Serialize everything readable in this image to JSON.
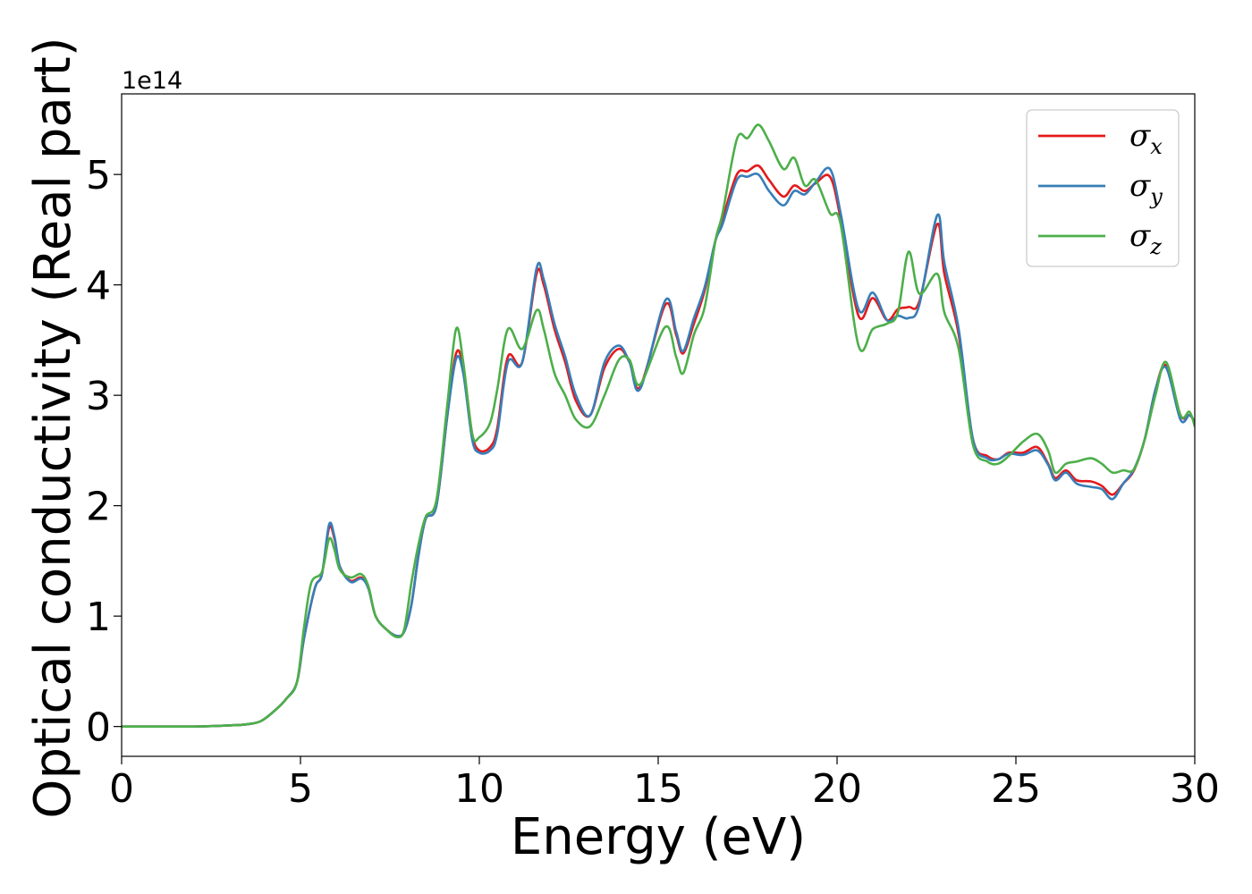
{
  "chart_data": {
    "type": "line",
    "title": "",
    "xlabel": "Energy (eV)",
    "ylabel": "Optical conductivity (Real part)",
    "y_offset_label": "1e14",
    "xlim": [
      0,
      30
    ],
    "ylim": [
      -0.27,
      5.73
    ],
    "x_ticks": [
      0,
      5,
      10,
      15,
      20,
      25,
      30
    ],
    "x_tick_labels": [
      "0",
      "5",
      "10",
      "15",
      "20",
      "25",
      "30"
    ],
    "y_ticks": [
      0,
      1,
      2,
      3,
      4,
      5
    ],
    "y_tick_labels": [
      "0",
      "1",
      "2",
      "3",
      "4",
      "5"
    ],
    "grid": false,
    "legend_position": "top-right",
    "series": [
      {
        "name": "σx",
        "name_main": "σ",
        "name_sub": "x",
        "color": "#e41a1c",
        "points": [
          [
            0,
            0
          ],
          [
            2,
            0
          ],
          [
            3,
            0.01
          ],
          [
            3.5,
            0.02
          ],
          [
            3.9,
            0.05
          ],
          [
            4.3,
            0.15
          ],
          [
            4.6,
            0.25
          ],
          [
            4.9,
            0.4
          ],
          [
            5.1,
            0.8
          ],
          [
            5.4,
            1.25
          ],
          [
            5.6,
            1.38
          ],
          [
            5.8,
            1.8
          ],
          [
            5.95,
            1.7
          ],
          [
            6.1,
            1.45
          ],
          [
            6.4,
            1.32
          ],
          [
            6.7,
            1.35
          ],
          [
            6.9,
            1.25
          ],
          [
            7.1,
            1.0
          ],
          [
            7.4,
            0.88
          ],
          [
            7.7,
            0.82
          ],
          [
            7.9,
            0.86
          ],
          [
            8.1,
            1.1
          ],
          [
            8.3,
            1.55
          ],
          [
            8.5,
            1.88
          ],
          [
            8.8,
            2.0
          ],
          [
            9.1,
            2.8
          ],
          [
            9.35,
            3.38
          ],
          [
            9.55,
            3.25
          ],
          [
            9.8,
            2.65
          ],
          [
            10,
            2.5
          ],
          [
            10.3,
            2.53
          ],
          [
            10.5,
            2.7
          ],
          [
            10.8,
            3.35
          ],
          [
            11.2,
            3.3
          ],
          [
            11.6,
            4.1
          ],
          [
            11.8,
            4.0
          ],
          [
            12.1,
            3.6
          ],
          [
            12.4,
            3.3
          ],
          [
            12.7,
            2.95
          ],
          [
            13.1,
            2.82
          ],
          [
            13.5,
            3.25
          ],
          [
            13.9,
            3.42
          ],
          [
            14.2,
            3.3
          ],
          [
            14.5,
            3.08
          ],
          [
            15.2,
            3.82
          ],
          [
            15.5,
            3.55
          ],
          [
            15.7,
            3.38
          ],
          [
            16.0,
            3.65
          ],
          [
            16.3,
            3.95
          ],
          [
            16.6,
            4.4
          ],
          [
            16.8,
            4.6
          ],
          [
            17.2,
            5.0
          ],
          [
            17.5,
            5.03
          ],
          [
            17.8,
            5.08
          ],
          [
            18.1,
            4.95
          ],
          [
            18.5,
            4.8
          ],
          [
            18.8,
            4.9
          ],
          [
            19.1,
            4.85
          ],
          [
            19.4,
            4.92
          ],
          [
            19.8,
            4.98
          ],
          [
            20.1,
            4.6
          ],
          [
            20.6,
            3.72
          ],
          [
            21.0,
            3.88
          ],
          [
            21.4,
            3.68
          ],
          [
            21.7,
            3.78
          ],
          [
            22.0,
            3.8
          ],
          [
            22.3,
            3.85
          ],
          [
            22.8,
            4.55
          ],
          [
            23.0,
            4.1
          ],
          [
            23.4,
            3.55
          ],
          [
            23.8,
            2.6
          ],
          [
            24.2,
            2.45
          ],
          [
            24.5,
            2.42
          ],
          [
            24.8,
            2.48
          ],
          [
            25.2,
            2.48
          ],
          [
            25.6,
            2.53
          ],
          [
            25.9,
            2.38
          ],
          [
            26.1,
            2.25
          ],
          [
            26.4,
            2.32
          ],
          [
            26.7,
            2.23
          ],
          [
            27.1,
            2.22
          ],
          [
            27.4,
            2.18
          ],
          [
            27.7,
            2.1
          ],
          [
            28.0,
            2.2
          ],
          [
            28.3,
            2.32
          ],
          [
            28.6,
            2.6
          ],
          [
            28.9,
            3.05
          ],
          [
            29.2,
            3.27
          ],
          [
            29.6,
            2.82
          ],
          [
            29.85,
            2.82
          ],
          [
            30.0,
            2.76
          ]
        ]
      },
      {
        "name": "σy",
        "name_main": "σ",
        "name_sub": "y",
        "color": "#377eb8",
        "points": [
          [
            0,
            0
          ],
          [
            2,
            0
          ],
          [
            3,
            0.01
          ],
          [
            3.5,
            0.02
          ],
          [
            3.9,
            0.05
          ],
          [
            4.3,
            0.15
          ],
          [
            4.6,
            0.25
          ],
          [
            4.9,
            0.4
          ],
          [
            5.1,
            0.8
          ],
          [
            5.4,
            1.25
          ],
          [
            5.6,
            1.38
          ],
          [
            5.8,
            1.83
          ],
          [
            5.95,
            1.72
          ],
          [
            6.1,
            1.45
          ],
          [
            6.4,
            1.31
          ],
          [
            6.7,
            1.34
          ],
          [
            6.9,
            1.25
          ],
          [
            7.1,
            1.0
          ],
          [
            7.4,
            0.88
          ],
          [
            7.7,
            0.82
          ],
          [
            7.9,
            0.86
          ],
          [
            8.1,
            1.1
          ],
          [
            8.3,
            1.55
          ],
          [
            8.5,
            1.88
          ],
          [
            8.8,
            2.0
          ],
          [
            9.1,
            2.8
          ],
          [
            9.35,
            3.33
          ],
          [
            9.55,
            3.2
          ],
          [
            9.8,
            2.6
          ],
          [
            10,
            2.48
          ],
          [
            10.3,
            2.5
          ],
          [
            10.5,
            2.65
          ],
          [
            10.8,
            3.3
          ],
          [
            11.2,
            3.3
          ],
          [
            11.6,
            4.15
          ],
          [
            11.8,
            4.05
          ],
          [
            12.1,
            3.65
          ],
          [
            12.4,
            3.35
          ],
          [
            12.7,
            3.0
          ],
          [
            13.1,
            2.82
          ],
          [
            13.5,
            3.3
          ],
          [
            13.9,
            3.45
          ],
          [
            14.2,
            3.3
          ],
          [
            14.5,
            3.06
          ],
          [
            15.2,
            3.86
          ],
          [
            15.5,
            3.58
          ],
          [
            15.7,
            3.4
          ],
          [
            16.0,
            3.7
          ],
          [
            16.3,
            3.98
          ],
          [
            16.6,
            4.4
          ],
          [
            16.8,
            4.55
          ],
          [
            17.2,
            4.95
          ],
          [
            17.5,
            4.98
          ],
          [
            17.8,
            5.0
          ],
          [
            18.1,
            4.85
          ],
          [
            18.5,
            4.72
          ],
          [
            18.8,
            4.85
          ],
          [
            19.1,
            4.82
          ],
          [
            19.4,
            4.93
          ],
          [
            19.8,
            5.05
          ],
          [
            20.1,
            4.65
          ],
          [
            20.6,
            3.78
          ],
          [
            21.0,
            3.93
          ],
          [
            21.4,
            3.68
          ],
          [
            21.7,
            3.72
          ],
          [
            22.0,
            3.7
          ],
          [
            22.3,
            3.82
          ],
          [
            22.8,
            4.63
          ],
          [
            23.0,
            4.2
          ],
          [
            23.4,
            3.6
          ],
          [
            23.8,
            2.6
          ],
          [
            24.2,
            2.43
          ],
          [
            24.5,
            2.42
          ],
          [
            24.8,
            2.47
          ],
          [
            25.2,
            2.46
          ],
          [
            25.6,
            2.5
          ],
          [
            25.9,
            2.37
          ],
          [
            26.1,
            2.23
          ],
          [
            26.4,
            2.3
          ],
          [
            26.7,
            2.2
          ],
          [
            27.1,
            2.17
          ],
          [
            27.4,
            2.15
          ],
          [
            27.7,
            2.06
          ],
          [
            28.0,
            2.2
          ],
          [
            28.3,
            2.33
          ],
          [
            28.6,
            2.6
          ],
          [
            28.9,
            3.05
          ],
          [
            29.2,
            3.25
          ],
          [
            29.6,
            2.78
          ],
          [
            29.85,
            2.82
          ],
          [
            30.0,
            2.76
          ]
        ]
      },
      {
        "name": "σz",
        "name_main": "σ",
        "name_sub": "z",
        "color": "#4daf4a",
        "points": [
          [
            0,
            0
          ],
          [
            2,
            0
          ],
          [
            3,
            0.01
          ],
          [
            3.5,
            0.02
          ],
          [
            3.9,
            0.05
          ],
          [
            4.3,
            0.15
          ],
          [
            4.6,
            0.25
          ],
          [
            4.9,
            0.4
          ],
          [
            5.1,
            0.9
          ],
          [
            5.3,
            1.3
          ],
          [
            5.6,
            1.4
          ],
          [
            5.8,
            1.7
          ],
          [
            5.95,
            1.6
          ],
          [
            6.1,
            1.42
          ],
          [
            6.4,
            1.35
          ],
          [
            6.7,
            1.38
          ],
          [
            6.9,
            1.27
          ],
          [
            7.1,
            1.0
          ],
          [
            7.4,
            0.88
          ],
          [
            7.7,
            0.81
          ],
          [
            7.9,
            0.88
          ],
          [
            8.1,
            1.3
          ],
          [
            8.3,
            1.65
          ],
          [
            8.5,
            1.9
          ],
          [
            8.8,
            2.05
          ],
          [
            9.1,
            2.9
          ],
          [
            9.35,
            3.6
          ],
          [
            9.55,
            3.3
          ],
          [
            9.8,
            2.65
          ],
          [
            10,
            2.62
          ],
          [
            10.3,
            2.75
          ],
          [
            10.5,
            3.05
          ],
          [
            10.8,
            3.6
          ],
          [
            11.2,
            3.42
          ],
          [
            11.6,
            3.77
          ],
          [
            11.8,
            3.6
          ],
          [
            12.1,
            3.2
          ],
          [
            12.4,
            3.0
          ],
          [
            12.7,
            2.78
          ],
          [
            13.1,
            2.72
          ],
          [
            13.5,
            3.0
          ],
          [
            13.9,
            3.32
          ],
          [
            14.2,
            3.32
          ],
          [
            14.5,
            3.1
          ],
          [
            15.2,
            3.62
          ],
          [
            15.5,
            3.35
          ],
          [
            15.7,
            3.2
          ],
          [
            16.0,
            3.55
          ],
          [
            16.3,
            3.8
          ],
          [
            16.6,
            4.4
          ],
          [
            16.8,
            4.65
          ],
          [
            17.2,
            5.32
          ],
          [
            17.5,
            5.33
          ],
          [
            17.8,
            5.45
          ],
          [
            18.1,
            5.3
          ],
          [
            18.5,
            5.05
          ],
          [
            18.8,
            5.15
          ],
          [
            19.1,
            4.9
          ],
          [
            19.4,
            4.95
          ],
          [
            19.8,
            4.65
          ],
          [
            20.1,
            4.55
          ],
          [
            20.6,
            3.45
          ],
          [
            21.0,
            3.6
          ],
          [
            21.4,
            3.65
          ],
          [
            21.7,
            3.75
          ],
          [
            22.0,
            4.3
          ],
          [
            22.3,
            3.92
          ],
          [
            22.8,
            4.1
          ],
          [
            23.0,
            3.75
          ],
          [
            23.4,
            3.42
          ],
          [
            23.8,
            2.55
          ],
          [
            24.2,
            2.4
          ],
          [
            24.5,
            2.38
          ],
          [
            24.8,
            2.45
          ],
          [
            25.2,
            2.58
          ],
          [
            25.6,
            2.65
          ],
          [
            25.9,
            2.5
          ],
          [
            26.1,
            2.3
          ],
          [
            26.4,
            2.38
          ],
          [
            26.7,
            2.4
          ],
          [
            27.1,
            2.43
          ],
          [
            27.4,
            2.38
          ],
          [
            27.7,
            2.3
          ],
          [
            28.0,
            2.32
          ],
          [
            28.3,
            2.33
          ],
          [
            28.6,
            2.6
          ],
          [
            28.9,
            3.0
          ],
          [
            29.2,
            3.3
          ],
          [
            29.6,
            2.82
          ],
          [
            29.85,
            2.85
          ],
          [
            30.0,
            2.72
          ]
        ]
      }
    ]
  }
}
